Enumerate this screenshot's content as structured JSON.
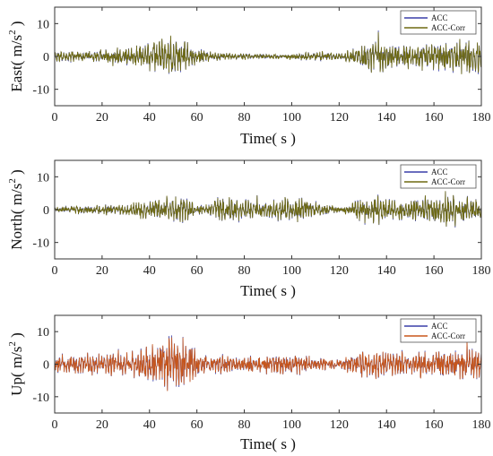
{
  "chart_data": [
    {
      "type": "line",
      "ylabel": "East( m/s² )",
      "ylabel_text": "East( m/s",
      "ylabel_sup": "2",
      "ylabel_tail": " )",
      "xlabel": "Time( s )",
      "xlim": [
        0,
        180
      ],
      "ylim": [
        -15,
        15
      ],
      "xticks": [
        "0",
        "20",
        "40",
        "60",
        "80",
        "100",
        "120",
        "140",
        "160",
        "180"
      ],
      "yticks": [
        "10",
        "0",
        "-10"
      ],
      "legend_position": "top-right",
      "series": [
        {
          "name": "ACC",
          "color": "#3a3fa8"
        },
        {
          "name": "ACC-Corr",
          "color": "#6e6a10"
        }
      ],
      "envelope": {
        "t": [
          0,
          5,
          10,
          15,
          20,
          25,
          30,
          35,
          40,
          45,
          50,
          55,
          60,
          65,
          70,
          75,
          80,
          85,
          90,
          95,
          100,
          105,
          110,
          115,
          120,
          125,
          130,
          135,
          140,
          145,
          150,
          155,
          160,
          165,
          170,
          175,
          180
        ],
        "amplitude": [
          2,
          2,
          2,
          2,
          2.5,
          3,
          3,
          4,
          5,
          6,
          7,
          6,
          3,
          2,
          1.5,
          1,
          1,
          1,
          0.8,
          0.8,
          0.8,
          1.5,
          1.5,
          1.5,
          1.2,
          2.5,
          5,
          5.5,
          5,
          4.5,
          4.5,
          4.5,
          5.5,
          5.5,
          6,
          6,
          6
        ]
      }
    },
    {
      "type": "line",
      "ylabel": "North( m/s² )",
      "ylabel_text": "North( m/s",
      "ylabel_sup": "2",
      "ylabel_tail": " )",
      "xlabel": "Time( s )",
      "xlim": [
        0,
        180
      ],
      "ylim": [
        -15,
        15
      ],
      "xticks": [
        "0",
        "20",
        "40",
        "60",
        "80",
        "100",
        "120",
        "140",
        "160",
        "180"
      ],
      "yticks": [
        "10",
        "0",
        "-10"
      ],
      "legend_position": "top-right",
      "series": [
        {
          "name": "ACC",
          "color": "#3a3fa8"
        },
        {
          "name": "ACC-Corr",
          "color": "#6e6a10"
        }
      ],
      "envelope": {
        "t": [
          0,
          5,
          10,
          15,
          20,
          25,
          30,
          35,
          40,
          45,
          50,
          55,
          60,
          65,
          70,
          75,
          80,
          85,
          90,
          95,
          100,
          105,
          110,
          115,
          120,
          125,
          130,
          135,
          140,
          145,
          150,
          155,
          160,
          165,
          170,
          175,
          180
        ],
        "amplitude": [
          1,
          1,
          1.5,
          1.5,
          2,
          2,
          2,
          3,
          3.5,
          4,
          4.5,
          5,
          2,
          2,
          5,
          5,
          4,
          3,
          3,
          4,
          5,
          4.5,
          3,
          2,
          1,
          2,
          5,
          6,
          5,
          4.5,
          4,
          4,
          6,
          6.5,
          5.5,
          5,
          4
        ]
      }
    },
    {
      "type": "line",
      "ylabel": "Up( m/s² )",
      "ylabel_text": "Up( m/s",
      "ylabel_sup": "2",
      "ylabel_tail": " )",
      "xlabel": "Time( s )",
      "xlim": [
        0,
        180
      ],
      "ylim": [
        -15,
        15
      ],
      "xticks": [
        "0",
        "20",
        "40",
        "60",
        "80",
        "100",
        "120",
        "140",
        "160",
        "180"
      ],
      "yticks": [
        "10",
        "0",
        "-10"
      ],
      "legend_position": "top-right",
      "series": [
        {
          "name": "ACC",
          "color": "#3a3fa8"
        },
        {
          "name": "ACC-Corr",
          "color": "#c8561a"
        }
      ],
      "envelope": {
        "t": [
          0,
          5,
          10,
          15,
          20,
          25,
          30,
          35,
          40,
          45,
          50,
          55,
          60,
          65,
          70,
          75,
          80,
          85,
          90,
          95,
          100,
          105,
          110,
          115,
          120,
          125,
          130,
          135,
          140,
          145,
          150,
          155,
          160,
          165,
          170,
          175,
          180
        ],
        "amplitude": [
          3,
          3.5,
          4,
          4,
          4,
          4,
          4,
          5,
          7,
          8,
          11,
          9,
          5,
          3,
          3.5,
          3,
          3,
          3,
          3,
          3.5,
          4,
          3.5,
          3,
          2.5,
          2,
          4,
          5,
          5,
          4.5,
          4.5,
          4.5,
          5,
          6,
          5.5,
          5.5,
          6,
          6
        ]
      }
    }
  ]
}
